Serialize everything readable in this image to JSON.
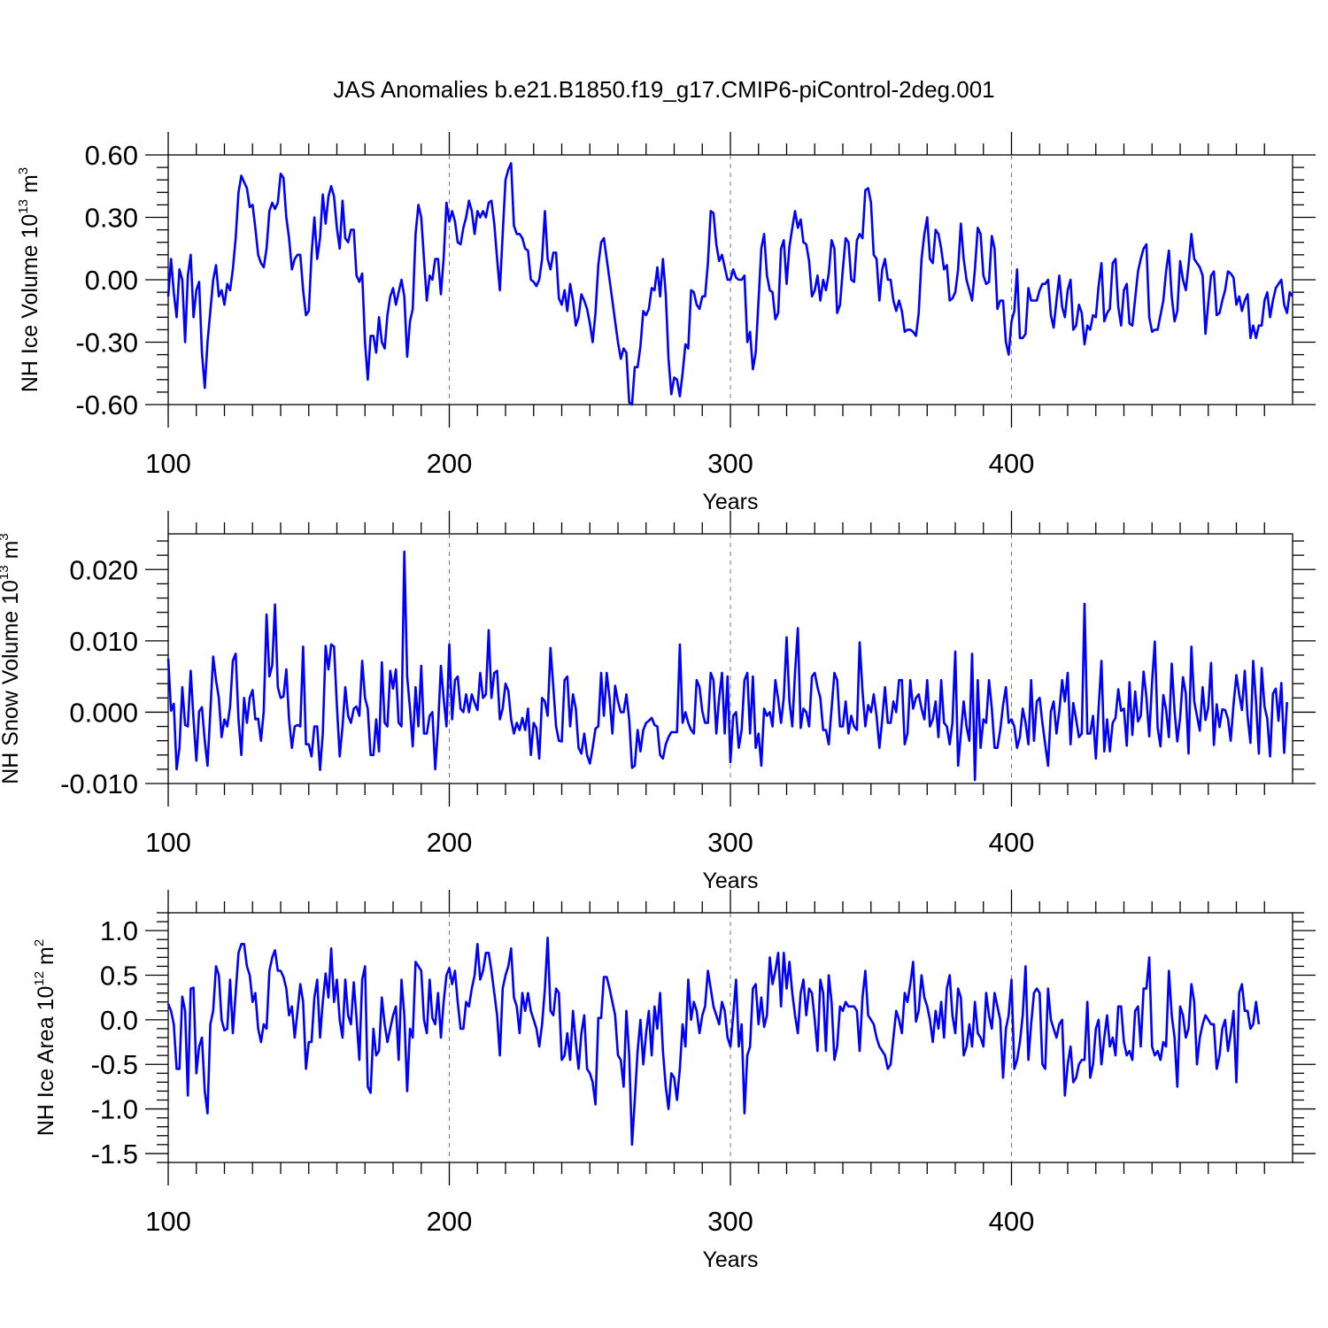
{
  "title": "JAS Anomalies b.e21.B1850.f19_g17.CMIP6-piControl-2deg.001",
  "line_color": "#0000ff",
  "chart_data": [
    {
      "type": "line",
      "ylabel_main": "NH Ice Volume 10",
      "ylabel_exp": "13",
      "ylabel_unit": " m",
      "ylabel_unit_exp": "3",
      "xlabel": "Years",
      "xlim": [
        100,
        500
      ],
      "ylim": [
        -0.6,
        0.6
      ],
      "xticks": [
        100,
        200,
        300,
        400
      ],
      "xtick_labels": [
        "100",
        "200",
        "300",
        "400"
      ],
      "yticks": [
        -0.6,
        -0.3,
        0.0,
        0.3,
        0.6
      ],
      "ytick_labels": [
        "-0.60",
        "-0.30",
        "0.00",
        "0.30",
        "0.60"
      ],
      "grid": "dashed vertical at major x ticks",
      "x_start": 100,
      "values": [
        -0.08,
        0.1,
        -0.06,
        -0.18,
        0.05,
        0.0,
        -0.3,
        0.02,
        0.12,
        -0.18,
        -0.05,
        -0.01,
        -0.35,
        -0.52,
        -0.3,
        -0.15,
        0.0,
        0.07,
        -0.08,
        -0.05,
        -0.12,
        -0.02,
        -0.05,
        0.05,
        0.2,
        0.42,
        0.5,
        0.47,
        0.44,
        0.35,
        0.36,
        0.25,
        0.12,
        0.08,
        0.06,
        0.15,
        0.33,
        0.37,
        0.34,
        0.37,
        0.51,
        0.49,
        0.3,
        0.2,
        0.05,
        0.1,
        0.12,
        0.12,
        -0.05,
        -0.17,
        -0.15,
        0.12,
        0.3,
        0.1,
        0.2,
        0.41,
        0.27,
        0.4,
        0.45,
        0.4,
        0.25,
        0.15,
        0.38,
        0.2,
        0.18,
        0.24,
        0.24,
        0.02,
        -0.01,
        0.03,
        -0.3,
        -0.48,
        -0.27,
        -0.27,
        -0.35,
        -0.18,
        -0.3,
        -0.33,
        -0.17,
        -0.08,
        -0.04,
        -0.12,
        -0.06,
        0.0,
        -0.08,
        -0.37,
        -0.2,
        -0.14,
        0.22,
        0.36,
        0.3,
        0.1,
        -0.1,
        0.02,
        0.0,
        0.1,
        0.1,
        -0.07,
        0.1,
        0.37,
        0.28,
        0.33,
        0.28,
        0.18,
        0.17,
        0.25,
        0.3,
        0.38,
        0.33,
        0.22,
        0.33,
        0.3,
        0.33,
        0.3,
        0.37,
        0.38,
        0.27,
        0.1,
        -0.05,
        0.22,
        0.48,
        0.53,
        0.56,
        0.26,
        0.22,
        0.22,
        0.2,
        0.15,
        0.14,
        0.0,
        -0.01,
        -0.03,
        0.0,
        0.1,
        0.33,
        0.1,
        0.05,
        0.13,
        0.13,
        -0.09,
        -0.12,
        -0.05,
        -0.15,
        -0.02,
        -0.1,
        -0.22,
        -0.18,
        -0.07,
        -0.1,
        -0.14,
        -0.21,
        -0.3,
        -0.16,
        0.07,
        0.18,
        0.2,
        0.1,
        0.0,
        -0.1,
        -0.2,
        -0.3,
        -0.38,
        -0.33,
        -0.35,
        -0.59,
        -0.6,
        -0.42,
        -0.42,
        -0.32,
        -0.15,
        -0.17,
        -0.14,
        -0.04,
        -0.05,
        0.06,
        -0.08,
        0.1,
        -0.07,
        -0.38,
        -0.55,
        -0.47,
        -0.48,
        -0.56,
        -0.45,
        -0.31,
        -0.33,
        -0.05,
        -0.06,
        -0.12,
        -0.14,
        -0.08,
        -0.08,
        0.08,
        0.33,
        0.32,
        0.17,
        0.09,
        0.12,
        0.06,
        0.0,
        0.0,
        0.05,
        0.01,
        0.0,
        0.0,
        0.02,
        -0.3,
        -0.25,
        -0.43,
        -0.35,
        -0.1,
        0.15,
        0.22,
        0.02,
        -0.05,
        -0.06,
        -0.19,
        -0.16,
        0.15,
        0.19,
        -0.02,
        0.16,
        0.25,
        0.33,
        0.25,
        0.29,
        0.18,
        0.17,
        0.09,
        -0.08,
        -0.05,
        0.02,
        -0.1,
        0.0,
        -0.05,
        0.03,
        0.19,
        0.15,
        -0.16,
        -0.12,
        0.05,
        0.2,
        0.18,
        0.0,
        -0.01,
        0.19,
        0.22,
        0.2,
        0.43,
        0.44,
        0.37,
        0.12,
        0.1,
        -0.1,
        0.05,
        0.1,
        0.0,
        0.0,
        -0.1,
        -0.15,
        -0.1,
        -0.15,
        -0.25,
        -0.24,
        -0.24,
        -0.25,
        -0.27,
        -0.16,
        0.1,
        0.22,
        0.3,
        0.1,
        0.08,
        0.24,
        0.22,
        0.15,
        0.05,
        0.07,
        -0.1,
        -0.09,
        -0.06,
        0.05,
        0.27,
        0.1,
        0.0,
        -0.05,
        -0.1,
        0.05,
        0.25,
        0.22,
        0.02,
        -0.02,
        -0.01,
        0.21,
        0.15,
        -0.14,
        -0.1,
        -0.1,
        -0.3,
        -0.36,
        -0.2,
        -0.15,
        0.05,
        -0.28,
        -0.28,
        -0.26,
        -0.04,
        -0.1,
        -0.1,
        -0.1,
        -0.05,
        -0.02,
        -0.02,
        0.0,
        -0.17,
        -0.23,
        -0.1,
        0.02,
        -0.13,
        -0.18,
        -0.05,
        0.0,
        -0.24,
        -0.22,
        -0.12,
        -0.16,
        -0.31,
        -0.22,
        -0.24,
        -0.17,
        -0.18,
        -0.03,
        0.08,
        -0.2,
        -0.16,
        -0.14,
        0.08,
        0.1,
        -0.13,
        -0.22,
        -0.05,
        -0.02,
        -0.21,
        -0.22,
        -0.09,
        0.04,
        0.1,
        0.15,
        0.17,
        -0.18,
        -0.25,
        -0.24,
        -0.24,
        -0.17,
        -0.1,
        0.04,
        0.14,
        -0.08,
        -0.2,
        -0.15,
        0.09,
        0.0,
        -0.05,
        0.07,
        0.22,
        0.1,
        0.08,
        0.06,
        0.02,
        -0.26,
        -0.11,
        0.02,
        0.04,
        -0.17,
        -0.16,
        -0.1,
        -0.05,
        0.04,
        0.03,
        0.01,
        -0.12,
        -0.08,
        -0.15,
        -0.1,
        -0.07,
        -0.28,
        -0.22,
        -0.28,
        -0.22,
        -0.22,
        -0.1,
        -0.06,
        -0.18,
        -0.1,
        -0.04,
        -0.02,
        0.0,
        -0.12,
        -0.16,
        -0.06,
        -0.08
      ]
    },
    {
      "type": "line",
      "ylabel_main": "NH Snow Volume 10",
      "ylabel_exp": "13",
      "ylabel_unit": " m",
      "ylabel_unit_exp": "3",
      "xlabel": "Years",
      "xlim": [
        100,
        500
      ],
      "ylim": [
        -0.01,
        0.025
      ],
      "xticks": [
        100,
        200,
        300,
        400
      ],
      "xtick_labels": [
        "100",
        "200",
        "300",
        "400"
      ],
      "yticks": [
        -0.01,
        0.0,
        0.01,
        0.02
      ],
      "ytick_labels": [
        "-0.010",
        "0.000",
        "0.010",
        "0.020"
      ],
      "grid": "dashed vertical at major x ticks",
      "x_start": 100,
      "values": [
        0.0075,
        0.0002,
        0.0012,
        -0.008,
        -0.005,
        0.0035,
        -0.0018,
        -0.002,
        0.0058,
        -0.001,
        -0.0068,
        0.0001,
        0.0007,
        -0.004,
        -0.0075,
        0.0001,
        0.0078,
        0.0045,
        0.002,
        -0.0035,
        -0.001,
        -0.002,
        0.0008,
        0.0072,
        0.0082,
        -0.001,
        -0.006,
        0.002,
        -0.0015,
        0.002,
        0.0031,
        -0.001,
        -0.0009,
        -0.004,
        0.0001,
        0.0137,
        0.005,
        0.0066,
        0.0151,
        0.0035,
        0.002,
        0.0022,
        0.006,
        -0.001,
        -0.005,
        -0.002,
        -0.0018,
        -0.002,
        0.0092,
        -0.0045,
        -0.0045,
        -0.0062,
        -0.002,
        -0.002,
        -0.0081,
        -0.003,
        0.0093,
        0.006,
        0.0095,
        0.0092,
        0.001,
        -0.0062,
        -0.002,
        0.0035,
        -0.0005,
        -0.0015,
        0.0005,
        0.0008,
        -0.0005,
        0.0072,
        0.002,
        0.0005,
        -0.006,
        -0.006,
        -0.001,
        -0.0055,
        0.007,
        -0.0015,
        -0.002,
        0.0058,
        0.0033,
        0.006,
        -0.0015,
        -0.002,
        0.0225,
        0.005,
        0.0005,
        -0.0048,
        0.0035,
        -0.002,
        0.0065,
        -0.003,
        -0.003,
        -0.0005,
        0.0,
        -0.008,
        -0.002,
        0.0065,
        0.002,
        -0.002,
        0.0095,
        -0.001,
        0.0045,
        0.005,
        0.0005,
        0.0,
        0.0025,
        0.0,
        0.0025,
        0.0013,
        0.0003,
        0.0055,
        0.002,
        0.0025,
        0.0115,
        0.002,
        0.0055,
        0.0058,
        -0.001,
        0.0005,
        0.004,
        0.003,
        -0.001,
        -0.003,
        -0.0015,
        -0.0025,
        -0.0008,
        -0.0025,
        0.0005,
        -0.006,
        -0.0015,
        -0.0022,
        -0.0065,
        0.002,
        0.0015,
        -0.0005,
        0.009,
        0.0035,
        -0.002,
        -0.004,
        -0.0041,
        0.0045,
        0.005,
        -0.002,
        0.0025,
        0.0005,
        -0.005,
        -0.0058,
        -0.003,
        -0.006,
        -0.0072,
        -0.005,
        -0.0023,
        -0.002,
        0.0055,
        -0.0005,
        0.0055,
        0.002,
        -0.003,
        0.0037,
        0.0015,
        0.0,
        0.0,
        0.0025,
        -0.001,
        -0.0078,
        -0.0075,
        -0.0025,
        -0.0055,
        -0.0025,
        -0.0015,
        -0.0012,
        -0.0008,
        -0.0018,
        -0.002,
        -0.006,
        -0.0065,
        -0.0045,
        -0.0035,
        -0.0028,
        -0.0028,
        -0.0028,
        0.0095,
        -0.0015,
        0.0,
        -0.0015,
        -0.0025,
        -0.003,
        0.0045,
        0.0035,
        0.0001,
        -0.0015,
        -0.0015,
        0.0055,
        0.0045,
        -0.003,
        0.002,
        0.0055,
        -0.003,
        0.005,
        -0.007,
        -0.0005,
        0.0,
        -0.005,
        -0.0025,
        0.0045,
        0.0055,
        -0.003,
        0.005,
        -0.005,
        -0.003,
        -0.0075,
        0.0005,
        -0.0005,
        0.0,
        -0.002,
        0.0045,
        0.0018,
        -0.0015,
        0.002,
        0.0105,
        0.0015,
        -0.002,
        0.0055,
        0.0118,
        -0.0022,
        0.0005,
        0.0,
        -0.002,
        0.005,
        0.0055,
        0.0035,
        0.002,
        -0.0025,
        -0.0025,
        -0.0045,
        0.0005,
        0.0055,
        0.0045,
        -0.002,
        -0.002,
        0.0015,
        -0.003,
        -0.0005,
        -0.002,
        -0.0025,
        0.0098,
        0.003,
        -0.002,
        0.001,
        0.0,
        0.0025,
        -0.0005,
        -0.005,
        -0.001,
        0.0035,
        -0.0015,
        -0.0015,
        0.0015,
        0.0,
        0.0045,
        0.0045,
        -0.0045,
        -0.003,
        0.0045,
        0.0005,
        0.002,
        0.0025,
        0.0005,
        -0.001,
        0.0045,
        -0.002,
        -0.001,
        0.0015,
        -0.0035,
        0.0045,
        -0.0015,
        -0.002,
        -0.0045,
        -0.0015,
        0.0085,
        -0.0075,
        -0.003,
        0.0015,
        -0.002,
        -0.004,
        0.0082,
        -0.0095,
        0.0045,
        -0.005,
        -0.001,
        -0.0015,
        0.0045,
        0.0005,
        -0.005,
        -0.005,
        -0.0025,
        0.001,
        0.0035,
        -0.0015,
        -0.001,
        -0.002,
        -0.005,
        -0.0035,
        0.0005,
        -0.0015,
        -0.0045,
        0.0045,
        -0.004,
        0.0015,
        0.002,
        -0.0015,
        -0.0045,
        -0.0075,
        0.0001,
        0.0015,
        -0.003,
        0.0001,
        0.0045,
        0.0015,
        0.0055,
        -0.0045,
        0.0013,
        -0.001,
        -0.0035,
        -0.003,
        0.0152,
        -0.003,
        -0.003,
        -0.0005,
        -0.0065,
        0.0005,
        0.0072,
        -0.0055,
        -0.001,
        -0.0055,
        -0.0015,
        -0.0008,
        0.0032,
        0.0002,
        0.0005,
        -0.0047,
        0.0042,
        -0.0032,
        0.0029,
        -0.0013,
        -0.0005,
        0.0057,
        0.0021,
        -0.0034,
        0.0042,
        0.0099,
        -0.0022,
        -0.0048,
        0.0024,
        0.0004,
        -0.0035,
        0.0068,
        0.0002,
        -0.0041,
        -0.0007,
        0.0049,
        0.0026,
        -0.0058,
        0.0092,
        0.0015,
        -0.0005,
        -0.0026,
        0.0035,
        -0.0011,
        0.0007,
        0.0069,
        -0.0046,
        0.0011,
        -0.0021,
        0.0004,
        0.0003,
        -0.0009,
        -0.004,
        0.0011,
        0.0052,
        0.0025,
        0.0003,
        0.0058,
        -0.0006,
        -0.0043,
        0.0072,
        0.0015,
        -0.0058,
        0.0062,
        0.0008,
        -0.0009,
        -0.0062,
        0.0026,
        0.0033,
        -0.0012,
        0.0041,
        -0.0057,
        0.0014
      ]
    },
    {
      "type": "line",
      "ylabel_main": "NH Ice Area 10",
      "ylabel_exp": "12",
      "ylabel_unit": " m",
      "ylabel_unit_exp": "2",
      "xlabel": "Years",
      "xlim": [
        100,
        500
      ],
      "ylim": [
        -1.6,
        1.2
      ],
      "xticks": [
        100,
        200,
        300,
        400
      ],
      "xtick_labels": [
        "100",
        "200",
        "300",
        "400"
      ],
      "yticks": [
        -1.5,
        -1.0,
        -0.5,
        0.0,
        0.5,
        1.0
      ],
      "ytick_labels": [
        "-1.5",
        "-1.0",
        "-0.5",
        "0.0",
        "0.5",
        "1.0"
      ],
      "grid": "dashed vertical at major x ticks",
      "x_start": 100,
      "values": [
        0.18,
        0.1,
        -0.05,
        -0.55,
        -0.55,
        0.26,
        0.1,
        -0.85,
        0.35,
        0.36,
        -0.6,
        -0.3,
        -0.2,
        -0.8,
        -1.05,
        -0.05,
        0.1,
        0.6,
        0.5,
        0.0,
        -0.12,
        -0.1,
        0.45,
        -0.15,
        0.3,
        0.75,
        0.85,
        0.85,
        0.6,
        0.5,
        0.2,
        0.3,
        -0.1,
        -0.25,
        -0.05,
        -0.1,
        0.55,
        0.7,
        0.78,
        0.55,
        0.55,
        0.48,
        0.35,
        0.05,
        0.15,
        -0.2,
        0.1,
        0.4,
        0.2,
        -0.55,
        -0.25,
        -0.25,
        0.25,
        0.45,
        -0.2,
        0.2,
        0.52,
        0.25,
        0.8,
        0.2,
        0.45,
        0.0,
        -0.2,
        0.45,
        0.05,
        -0.05,
        0.42,
        0.02,
        -0.45,
        0.45,
        0.6,
        -0.75,
        -0.82,
        -0.1,
        -0.4,
        -0.35,
        0.25,
        -0.05,
        -0.25,
        -0.1,
        0.05,
        0.15,
        -0.45,
        0.45,
        0.05,
        -0.8,
        -0.1,
        -0.2,
        0.65,
        0.6,
        0.55,
        0.0,
        -0.15,
        0.45,
        0.02,
        -0.05,
        0.3,
        -0.2,
        0.2,
        0.5,
        0.58,
        0.4,
        0.55,
        0.2,
        -0.1,
        -0.1,
        0.2,
        0.15,
        0.35,
        0.5,
        0.85,
        0.45,
        0.55,
        0.75,
        0.75,
        0.55,
        0.3,
        0.05,
        -0.4,
        0.35,
        0.5,
        0.6,
        0.8,
        0.25,
        0.15,
        -0.15,
        0.3,
        0.1,
        0.3,
        0.1,
        0.0,
        -0.1,
        -0.3,
        -0.05,
        0.35,
        0.92,
        0.1,
        0.05,
        0.35,
        0.3,
        -0.45,
        -0.4,
        -0.15,
        -0.45,
        0.1,
        -0.25,
        -0.55,
        -0.15,
        0.05,
        -0.55,
        -0.6,
        -0.7,
        -0.95,
        0.02,
        0.02,
        0.48,
        0.48,
        0.35,
        0.2,
        0.05,
        -0.4,
        -0.45,
        -0.75,
        0.1,
        -0.4,
        -1.4,
        -0.9,
        -0.35,
        0.0,
        -0.5,
        -0.15,
        0.1,
        -0.4,
        0.15,
        -0.1,
        0.3,
        -0.35,
        -0.75,
        -1.0,
        -0.6,
        -0.65,
        -0.9,
        -0.55,
        -0.05,
        -0.3,
        0.45,
        0.0,
        0.2,
        0.1,
        -0.15,
        0.05,
        0.15,
        0.55,
        0.35,
        0.15,
        0.05,
        -0.05,
        0.2,
        0.1,
        -0.2,
        -0.3,
        0.05,
        0.45,
        -0.3,
        -0.05,
        -1.05,
        -0.4,
        -0.3,
        0.35,
        0.4,
        -0.05,
        0.25,
        -0.08,
        0.05,
        0.7,
        0.4,
        0.55,
        0.75,
        0.15,
        0.75,
        0.35,
        0.65,
        0.3,
        0.05,
        -0.15,
        0.3,
        0.45,
        0.05,
        0.35,
        0.3,
        0.0,
        -0.35,
        0.45,
        0.3,
        -0.35,
        0.5,
        0.2,
        -0.45,
        -0.3,
        0.15,
        0.1,
        0.2,
        0.15,
        0.15,
        0.15,
        0.1,
        -0.35,
        0.25,
        0.55,
        0.05,
        0.0,
        -0.05,
        -0.2,
        -0.3,
        -0.35,
        -0.4,
        -0.55,
        -0.5,
        -0.2,
        0.1,
        0.0,
        -0.15,
        0.3,
        0.2,
        0.4,
        0.65,
        -0.02,
        0.1,
        0.5,
        0.25,
        0.15,
        0.0,
        -0.25,
        0.1,
        -0.1,
        0.2,
        -0.2,
        0.35,
        0.5,
        0.05,
        -0.15,
        0.35,
        0.25,
        -0.4,
        -0.3,
        -0.05,
        -0.3,
        0.2,
        -0.15,
        -0.2,
        -0.3,
        0.3,
        0.05,
        -0.1,
        0.3,
        0.15,
        0.0,
        -0.65,
        -0.1,
        0.05,
        0.45,
        -0.55,
        -0.45,
        -0.25,
        0.05,
        0.6,
        -0.45,
        -0.05,
        0.3,
        0.35,
        0.3,
        -0.5,
        -0.55,
        0.35,
        0.0,
        -0.1,
        -0.2,
        -0.05,
        0.0,
        -0.85,
        -0.5,
        -0.3,
        -0.7,
        -0.65,
        -0.5,
        -0.45,
        -0.45,
        0.2,
        -0.65,
        -0.5,
        -0.1,
        0.0,
        -0.5,
        -0.2,
        0.05,
        -0.3,
        -0.2,
        -0.4,
        0.15,
        0.15,
        -0.25,
        -0.4,
        -0.35,
        -0.45,
        0.1,
        0.15,
        -0.3,
        0.35,
        0.35,
        0.7,
        -0.3,
        -0.4,
        -0.35,
        -0.45,
        -0.25,
        -0.3,
        0.55,
        0.05,
        -0.2,
        -0.75,
        0.15,
        0.05,
        -0.2,
        -0.1,
        0.4,
        0.2,
        -0.5,
        -0.2,
        -0.05,
        0.05,
        0.0,
        -0.05,
        -0.05,
        -0.55,
        -0.4,
        -0.1,
        0.0,
        -0.35,
        -0.15,
        0.1,
        -0.7,
        0.3,
        0.4,
        0.1,
        0.1,
        -0.1,
        -0.05,
        0.2,
        -0.05
      ]
    }
  ]
}
